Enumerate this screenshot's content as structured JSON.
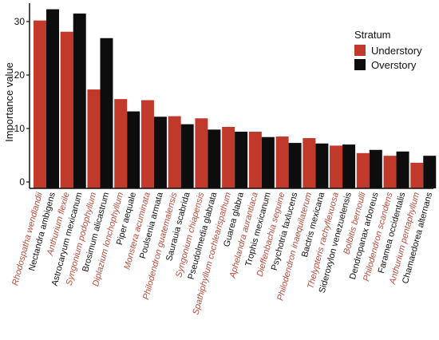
{
  "chart_data": {
    "type": "bar",
    "title": "",
    "xlabel": "",
    "ylabel": "Importance value",
    "ylim": [
      0,
      34
    ],
    "yticks": [
      0,
      10,
      20,
      30
    ],
    "grid": false,
    "legend": {
      "title": "Stratum",
      "placement": "right"
    },
    "colors": {
      "Understory": "#c0392b",
      "Overstory": "#0d0d0d",
      "understory_label": "#b84a3a",
      "overstory_label": "#111111"
    },
    "pairs": [
      {
        "understory": "Rhodospatha wendlandii",
        "overstory": "Nectandra ambigens"
      },
      {
        "understory": "Anthurium flexile",
        "overstory": "Astrocaryum mexicanum"
      },
      {
        "understory": "Syngonium podophyllum",
        "overstory": "Brosimum alicastrum"
      },
      {
        "understory": "Diplazium lonchophyllum",
        "overstory": "Piper aequale"
      },
      {
        "understory": "Monstera acuminata",
        "overstory": "Poulsenia armata"
      },
      {
        "understory": "Philodendron guatemalensis",
        "overstory": "Saurauia scabrida"
      },
      {
        "understory": "Syngonium chiapensis",
        "overstory": "Pseudolmedia glabrata"
      },
      {
        "understory": "Spathiphyllum cochlearispathum",
        "overstory": "Guarea glabra"
      },
      {
        "understory": "Aphelandra aurantiaca",
        "overstory": "Trophis mexicanum"
      },
      {
        "understory": "Dieffenbachia seguine",
        "overstory": "Psychotria faxlucens"
      },
      {
        "understory": "Philodendron inaequilaterum",
        "overstory": "Bactris mexicana"
      },
      {
        "understory": "Thelypteris rachyflexuosa",
        "overstory": "Sideroxylon venezuelensis"
      },
      {
        "understory": "Bolbitis bernoulli",
        "overstory": "Dendropanax arboreus"
      },
      {
        "understory": "Philodendron scandens",
        "overstory": "Faramea occidentalis"
      },
      {
        "understory": "Anthurium pentaphyllum",
        "overstory": "Chamaedorea alternans"
      }
    ],
    "series": [
      {
        "name": "Understory",
        "values": [
          30.2,
          28.1,
          17.3,
          15.5,
          15.3,
          12.3,
          11.9,
          10.3,
          9.4,
          8.5,
          8.2,
          6.8,
          5.4,
          4.9,
          3.6
        ]
      },
      {
        "name": "Overstory",
        "values": [
          32.3,
          31.5,
          26.9,
          13.2,
          12.2,
          10.8,
          9.8,
          9.4,
          8.4,
          7.3,
          7.2,
          7.0,
          6.0,
          5.7,
          4.9
        ]
      }
    ]
  }
}
